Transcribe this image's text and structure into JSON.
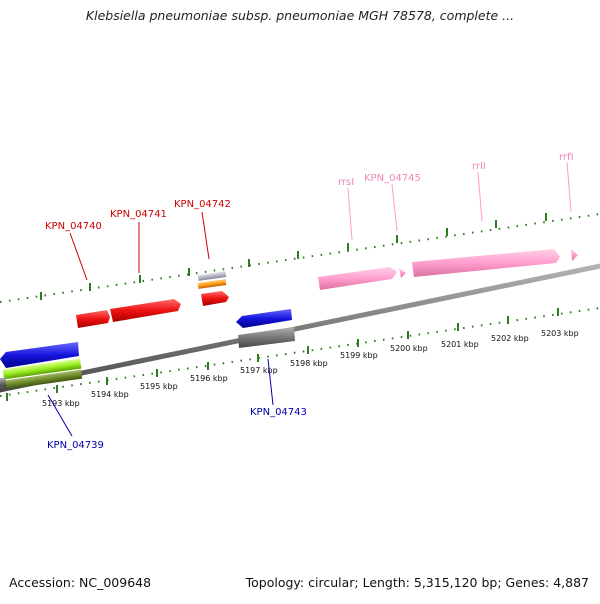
{
  "title": "Klebsiella pneumoniae subsp. pneumoniae MGH 78578, complete ...",
  "footer": {
    "accession": "Accession: NC_009648",
    "summary": "Topology: circular; Length: 5,315,120 bp; Genes: 4,887"
  },
  "colors": {
    "backbone": "#7a7a7a",
    "tick": "#2e7d1f",
    "forward_gene": "#ee1111",
    "reverse_gene": "#1111dd",
    "rrna": "#ff99cc",
    "forward_label": "#cc0000",
    "reverse_label": "#0000aa",
    "rrna_label": "#ee88bb"
  },
  "scale": {
    "unit": "kbp",
    "tick_labels": [
      "5193 kbp",
      "5194 kbp",
      "5195 kbp",
      "5196 kbp",
      "5197 kbp",
      "5198 kbp",
      "5199 kbp",
      "5200 kbp",
      "5201 kbp",
      "5202 kbp",
      "5203 kbp"
    ]
  },
  "features": {
    "forward_genes": [
      "KPN_04740",
      "KPN_04741",
      "KPN_04742"
    ],
    "reverse_genes": [
      "KPN_04739",
      "KPN_04743"
    ],
    "rrnas": [
      "rrsI",
      "KPN_04745",
      "rrlI",
      "rrfI"
    ]
  }
}
